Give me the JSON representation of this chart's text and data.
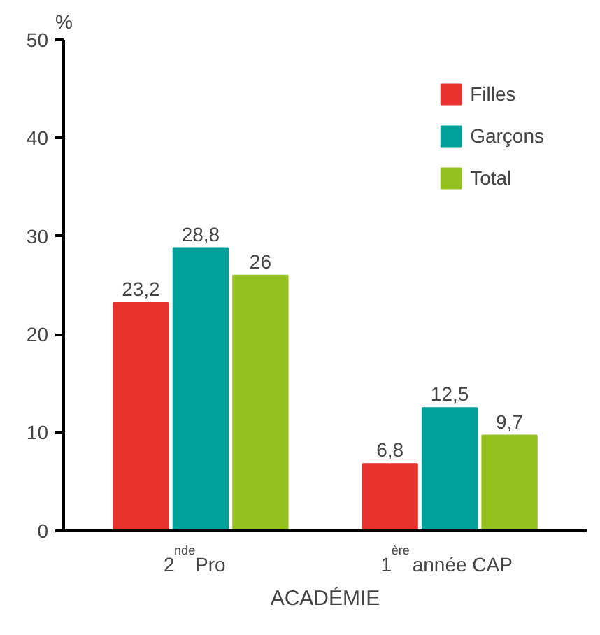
{
  "chart_data": {
    "type": "bar",
    "ylabel": "%",
    "xlabel": "ACADÉMIE",
    "categories": [
      "2$^{nde}$ Pro",
      "1$^{ère}$ année CAP"
    ],
    "series": [
      {
        "name": "Filles",
        "color": "#e8322e",
        "values": [
          23.2,
          6.8
        ],
        "value_labels": [
          "23,2",
          "6,8"
        ]
      },
      {
        "name": "Garçons",
        "color": "#00a19a",
        "values": [
          28.8,
          12.5
        ],
        "value_labels": [
          "28,8",
          "12,5"
        ]
      },
      {
        "name": "Total",
        "color": "#95c11f",
        "values": [
          26,
          9.7
        ],
        "value_labels": [
          "26",
          "9,7"
        ]
      }
    ],
    "ylim": [
      0,
      50
    ],
    "yticks": [
      0,
      10,
      20,
      30,
      40,
      50
    ],
    "grid": false,
    "legend": "top right"
  }
}
